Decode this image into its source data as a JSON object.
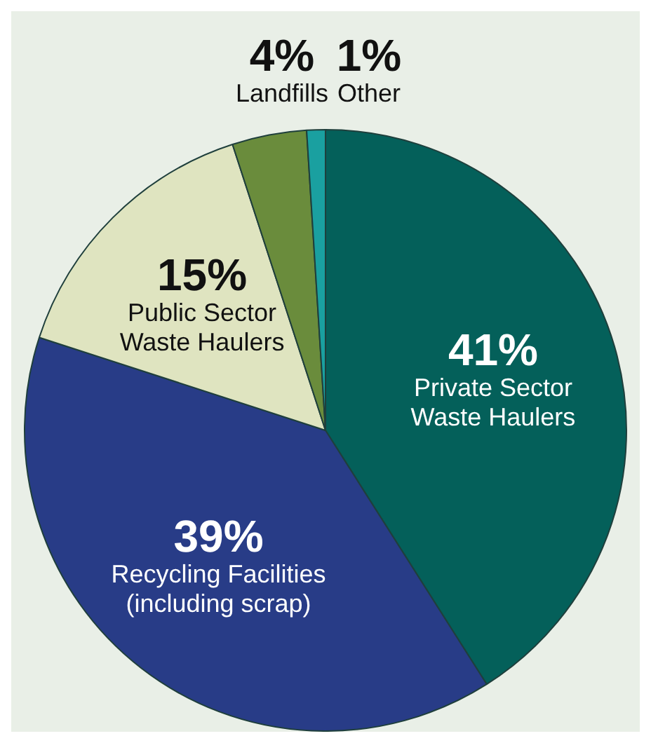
{
  "chart_data": {
    "type": "pie",
    "categories": [
      "Private Sector Waste Haulers",
      "Recycling Facilities (including scrap)",
      "Public Sector Waste Haulers",
      "Landfills",
      "Other"
    ],
    "values": [
      41,
      39,
      15,
      4,
      1
    ],
    "value_labels": [
      "41%",
      "39%",
      "15%",
      "4%",
      "1%"
    ],
    "colors": [
      "#04605a",
      "#283c87",
      "#dfe4c0",
      "#6a8c3c",
      "#1aa0a0"
    ],
    "legend": false
  }
}
